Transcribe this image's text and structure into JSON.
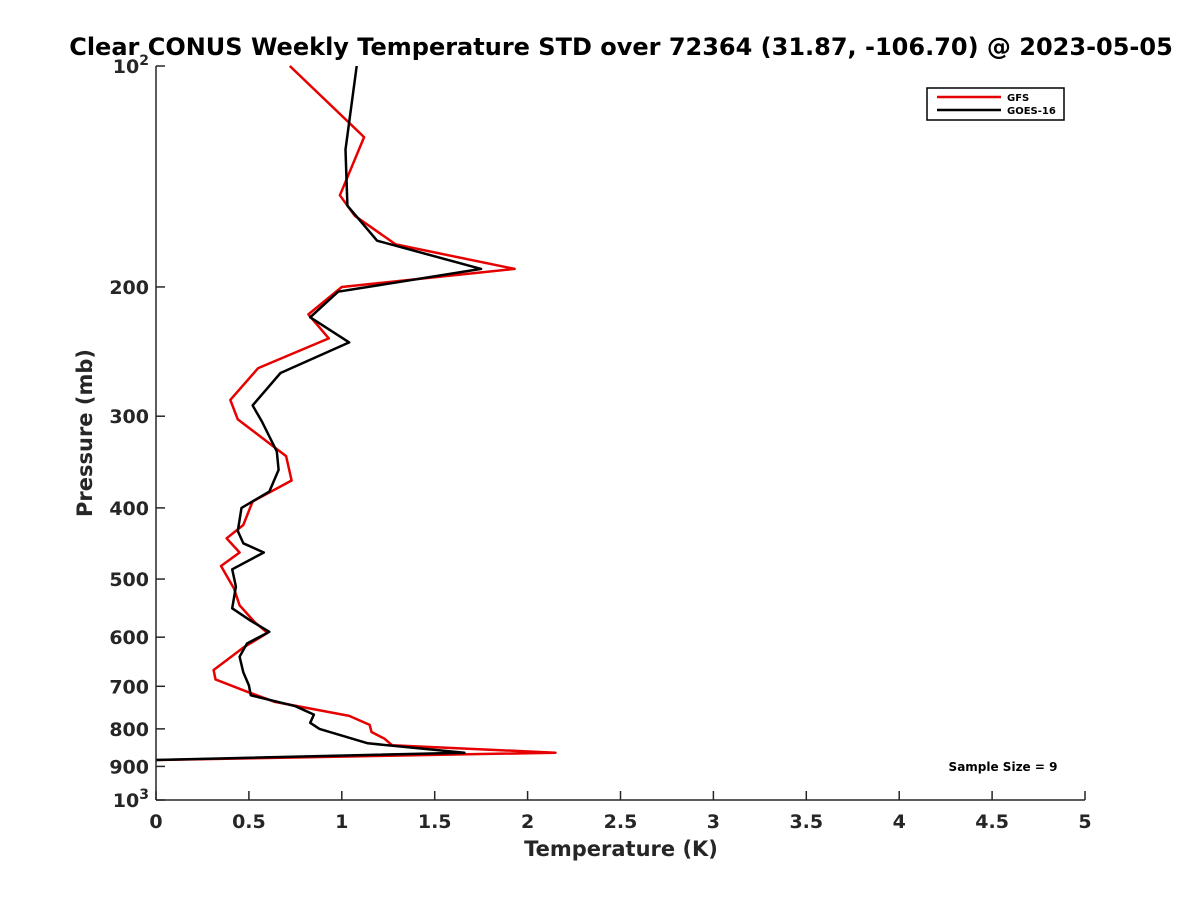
{
  "chart_data": {
    "type": "line",
    "title": "Clear CONUS Weekly Temperature STD over 72364 (31.87, -106.70) @ 2023-05-05",
    "xlabel": "Temperature (K)",
    "ylabel": "Pressure (mb)",
    "xlim": [
      0,
      5
    ],
    "ylim": [
      100,
      1000
    ],
    "y_scale": "log",
    "y_reversed": true,
    "x_ticks": [
      "0",
      "0.5",
      "1",
      "1.5",
      "2",
      "2.5",
      "3",
      "3.5",
      "4",
      "4.5",
      "5"
    ],
    "y_ticks": [
      {
        "value": 100,
        "base": "10",
        "exp": "2"
      },
      {
        "value": 200,
        "label": "200"
      },
      {
        "value": 300,
        "label": "300"
      },
      {
        "value": 400,
        "label": "400"
      },
      {
        "value": 500,
        "label": "500"
      },
      {
        "value": 600,
        "label": "600"
      },
      {
        "value": 700,
        "label": "700"
      },
      {
        "value": 800,
        "label": "800"
      },
      {
        "value": 900,
        "label": "900"
      },
      {
        "value": 1000,
        "base": "10",
        "exp": "3"
      }
    ],
    "legend_position": "top-right",
    "annotation": "Sample Size = 9",
    "series": [
      {
        "name": "GFS",
        "color": "#e60000",
        "points": [
          [
            0.72,
            100
          ],
          [
            1.12,
            125
          ],
          [
            0.99,
            150
          ],
          [
            1.07,
            160
          ],
          [
            1.29,
            175
          ],
          [
            1.93,
            189
          ],
          [
            1.0,
            200
          ],
          [
            0.82,
            218
          ],
          [
            0.93,
            235
          ],
          [
            0.55,
            258
          ],
          [
            0.4,
            285
          ],
          [
            0.44,
            303
          ],
          [
            0.7,
            340
          ],
          [
            0.73,
            367
          ],
          [
            0.52,
            392
          ],
          [
            0.47,
            422
          ],
          [
            0.38,
            440
          ],
          [
            0.45,
            460
          ],
          [
            0.35,
            480
          ],
          [
            0.42,
            515
          ],
          [
            0.45,
            543
          ],
          [
            0.53,
            572
          ],
          [
            0.6,
            592
          ],
          [
            0.47,
            620
          ],
          [
            0.38,
            645
          ],
          [
            0.31,
            665
          ],
          [
            0.32,
            685
          ],
          [
            0.49,
            712
          ],
          [
            0.64,
            735
          ],
          [
            1.04,
            768
          ],
          [
            1.15,
            790
          ],
          [
            1.16,
            808
          ],
          [
            1.23,
            825
          ],
          [
            1.27,
            842
          ],
          [
            2.15,
            862
          ],
          [
            0.0,
            882
          ]
        ]
      },
      {
        "name": "GOES-16",
        "color": "#000000",
        "points": [
          [
            1.08,
            100
          ],
          [
            1.02,
            130
          ],
          [
            1.03,
            155
          ],
          [
            1.19,
            173
          ],
          [
            1.75,
            189
          ],
          [
            0.98,
            203
          ],
          [
            0.83,
            220
          ],
          [
            1.04,
            238
          ],
          [
            0.67,
            262
          ],
          [
            0.52,
            290
          ],
          [
            0.57,
            305
          ],
          [
            0.65,
            335
          ],
          [
            0.66,
            355
          ],
          [
            0.61,
            380
          ],
          [
            0.46,
            400
          ],
          [
            0.44,
            430
          ],
          [
            0.47,
            447
          ],
          [
            0.58,
            460
          ],
          [
            0.41,
            485
          ],
          [
            0.43,
            512
          ],
          [
            0.41,
            548
          ],
          [
            0.51,
            570
          ],
          [
            0.61,
            590
          ],
          [
            0.49,
            612
          ],
          [
            0.45,
            638
          ],
          [
            0.47,
            670
          ],
          [
            0.5,
            698
          ],
          [
            0.51,
            720
          ],
          [
            0.75,
            745
          ],
          [
            0.85,
            765
          ],
          [
            0.83,
            785
          ],
          [
            0.88,
            800
          ],
          [
            1.14,
            837
          ],
          [
            1.66,
            862
          ],
          [
            0.0,
            882
          ]
        ]
      }
    ]
  }
}
